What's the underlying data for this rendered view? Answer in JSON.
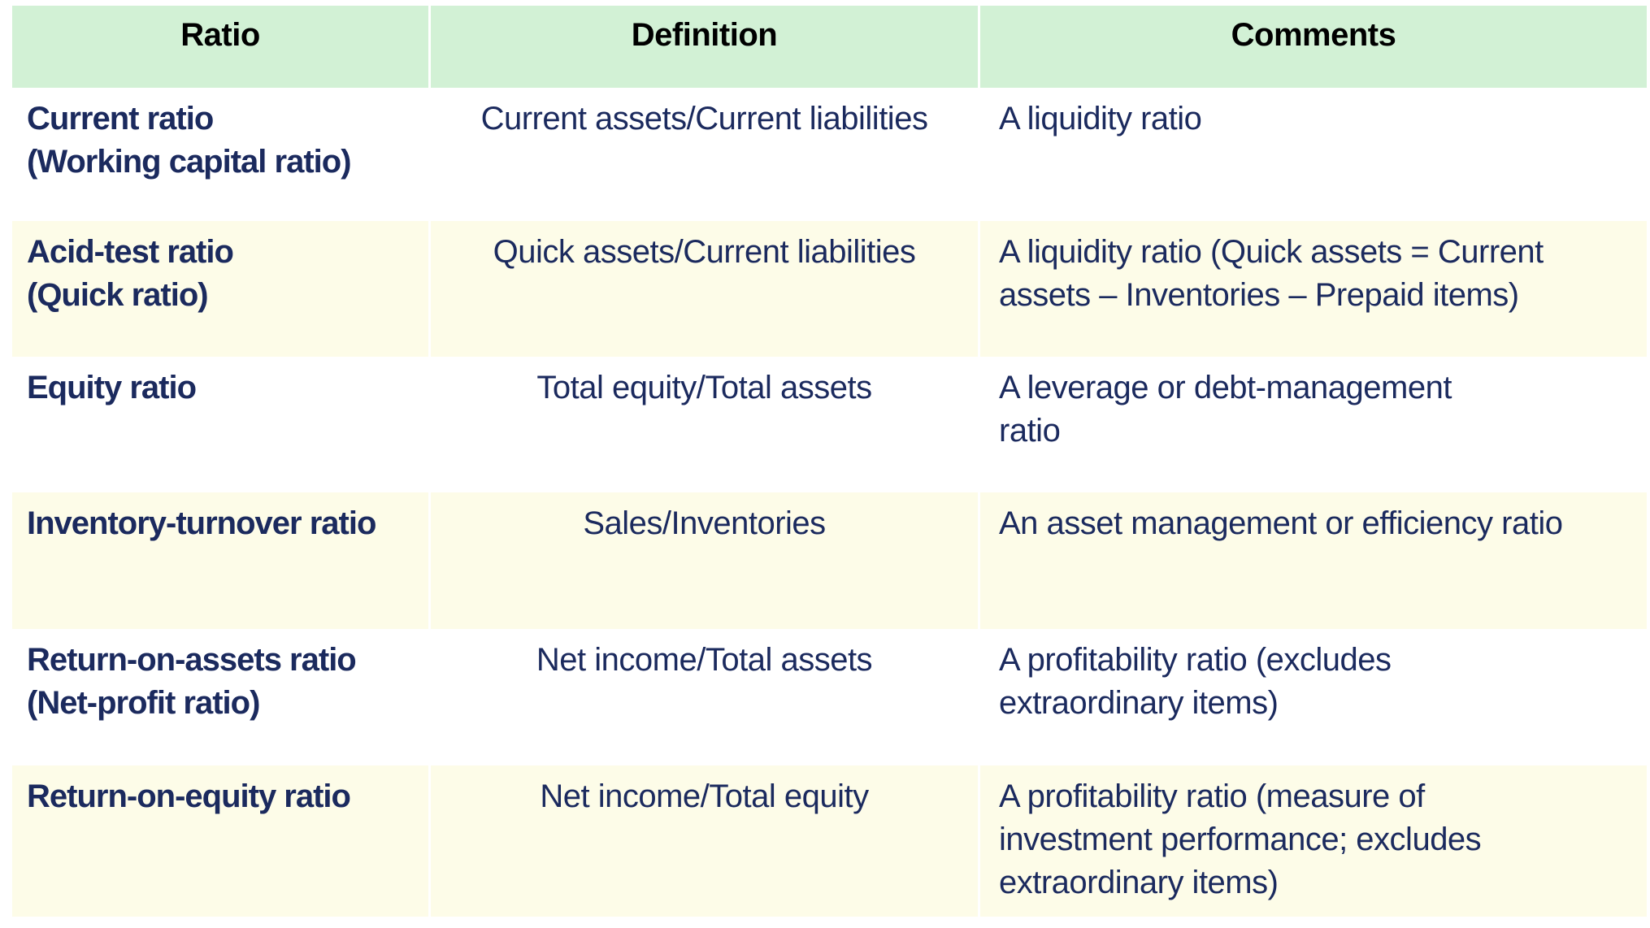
{
  "table": {
    "header": {
      "ratio": "Ratio",
      "definition": "Definition",
      "comments": "Comments"
    },
    "rows": [
      {
        "ratio": "Current ratio\n(Working capital ratio)",
        "definition": "Current assets/Current liabilities",
        "comments": "A liquidity ratio"
      },
      {
        "ratio": "Acid-test ratio\n(Quick ratio)",
        "definition": "Quick assets/Current liabilities",
        "comments": "A liquidity ratio (Quick assets = Current\nassets – Inventories – Prepaid items)"
      },
      {
        "ratio": "Equity ratio",
        "definition": "Total equity/Total assets",
        "comments": "A leverage or debt-management\nratio"
      },
      {
        "ratio": "Inventory-turnover ratio",
        "definition": "Sales/Inventories",
        "comments": "An asset management or efficiency ratio"
      },
      {
        "ratio": "Return-on-assets ratio\n(Net-profit ratio)",
        "definition": "Net income/Total assets",
        "comments": "A profitability ratio (excludes\nextraordinary items)"
      },
      {
        "ratio": "Return-on-equity ratio",
        "definition": "Net income/Total equity",
        "comments": "A profitability ratio (measure of\ninvestment performance; excludes\nextraordinary items)"
      }
    ],
    "colors": {
      "header_bg": "#d2f1d5",
      "alt_row_bg": "#fdfce8",
      "body_text": "#1b2a5e",
      "header_text": "#000000"
    }
  }
}
